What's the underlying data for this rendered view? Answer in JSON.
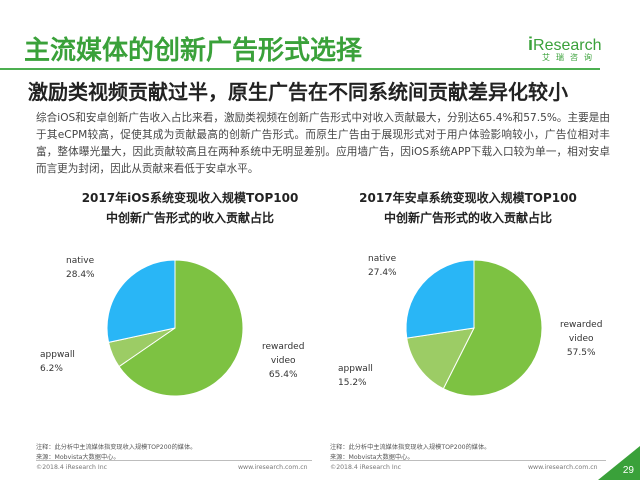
{
  "header": {
    "title": "主流媒体的创新广告形式选择",
    "subtitle": "激励类视频贡献过半，原生广告在不同系统间贡献差异化较小",
    "logo_brand_i": "i",
    "logo_brand_rest": "Research",
    "logo_sub": "艾瑞咨询",
    "brand_color": "#3aa13a"
  },
  "body_text": "综合iOS和安卓创新广告收入占比来看，激励类视频在创新广告形式中对收入贡献最大，分别达65.4%和57.5%。主要是由于其eCPM较高，促使其成为贡献最高的创新广告形式。而原生广告由于展现形式对于用户体验影响较小，广告位相对丰富，整体曝光量大，因此贡献较高且在两种系统中无明显差别。应用墙广告，因iOS系统APP下载入口较为单一，相对安卓而言更为封闭，因此从贡献来看低于安卓水平。",
  "charts": [
    {
      "title_line1": "2017年iOS系统变现收入规模TOP100",
      "title_line2": "中创新广告形式的收入贡献占比",
      "labels": {
        "native_name": "native",
        "native_value": "28.4%",
        "appwall_name": "appwall",
        "appwall_value": "6.2%",
        "rewarded_name1": "rewarded",
        "rewarded_name2": "video",
        "rewarded_value": "65.4%"
      },
      "note_line1": "注释：此分析中主流媒体指变现收入规模TOP200的媒体。",
      "note_line2": "来源：Mobvista大数据中心。",
      "footer_left": "©2018.4 iResearch Inc",
      "footer_right": "www.iresearch.com.cn"
    },
    {
      "title_line1": "2017年安卓系统变现收入规模TOP100",
      "title_line2": "中创新广告形式的收入贡献占比",
      "labels": {
        "native_name": "native",
        "native_value": "27.4%",
        "appwall_name": "appwall",
        "appwall_value": "15.2%",
        "rewarded_name1": "rewarded",
        "rewarded_name2": "video",
        "rewarded_value": "57.5%"
      },
      "note_line1": "注释：此分析中主流媒体指变现收入规模TOP200的媒体。",
      "note_line2": "来源：Mobvista大数据中心。",
      "footer_left": "©2018.4 iResearch Inc",
      "footer_right": "www.iresearch.com.cn"
    }
  ],
  "page_number": "29",
  "chart_data": [
    {
      "type": "pie",
      "title": "2017年iOS系统变现收入规模TOP100中创新广告形式的收入贡献占比",
      "categories": [
        "rewarded video",
        "appwall",
        "native"
      ],
      "values": [
        65.4,
        6.2,
        28.4
      ],
      "colors": [
        "#7dc242",
        "#9ccc65",
        "#29b6f6"
      ],
      "legend": "none"
    },
    {
      "type": "pie",
      "title": "2017年安卓系统变现收入规模TOP100中创新广告形式的收入贡献占比",
      "categories": [
        "rewarded video",
        "appwall",
        "native"
      ],
      "values": [
        57.5,
        15.2,
        27.4
      ],
      "colors": [
        "#7dc242",
        "#9ccc65",
        "#29b6f6"
      ],
      "legend": "none"
    }
  ]
}
